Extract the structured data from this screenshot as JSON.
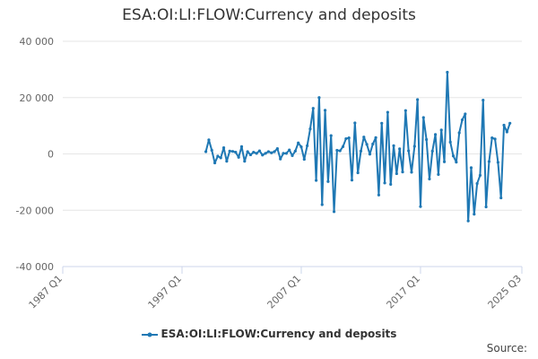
{
  "chart_data": {
    "type": "line",
    "title": "ESA:OI:LI:FLOW:Currency and deposits",
    "xlabel": "",
    "ylabel": "",
    "x_ticks": [
      "1987 Q1",
      "1997 Q1",
      "2007 Q1",
      "2017 Q1",
      "2025 Q3"
    ],
    "y_ticks": [
      "40 000",
      "20 000",
      "0",
      "-20 000",
      "-40 000"
    ],
    "ylim": [
      -40000,
      40000
    ],
    "xlim": [
      "1987 Q1",
      "2025 Q3"
    ],
    "grid": "horizontal",
    "legend": "bottom-center",
    "color": "#1f78b4",
    "series": [
      {
        "name": "ESA:OI:LI:FLOW:Currency and deposits",
        "start": "1999 Q1",
        "values": [
          800,
          5000,
          1300,
          -3200,
          -800,
          -1400,
          2200,
          -2600,
          1000,
          900,
          600,
          -1200,
          2600,
          -2600,
          800,
          -300,
          600,
          200,
          1100,
          -400,
          200,
          800,
          400,
          800,
          1900,
          -1800,
          200,
          200,
          1400,
          -600,
          1000,
          3900,
          2500,
          -1900,
          2900,
          8900,
          16200,
          -9400,
          20000,
          -18000,
          15500,
          -9800,
          6500,
          -20500,
          1300,
          1100,
          2600,
          5400,
          5700,
          -9300,
          11000,
          -6700,
          1000,
          6000,
          3400,
          -100,
          3500,
          5800,
          -14600,
          10900,
          -10300,
          14800,
          -10800,
          2900,
          -7000,
          1800,
          -6400,
          15400,
          1100,
          -6500,
          2700,
          19300,
          -18700,
          12900,
          5100,
          -8900,
          1000,
          6900,
          -7300,
          8500,
          -2800,
          29000,
          4200,
          -700,
          -2900,
          7500,
          12100,
          14200,
          -23800,
          -4900,
          -21400,
          -10500,
          -7600,
          19100,
          -18800,
          -2700,
          5700,
          5300,
          -3000,
          -15600,
          10200,
          7800,
          10900
        ]
      }
    ]
  },
  "source_label": "Source:"
}
